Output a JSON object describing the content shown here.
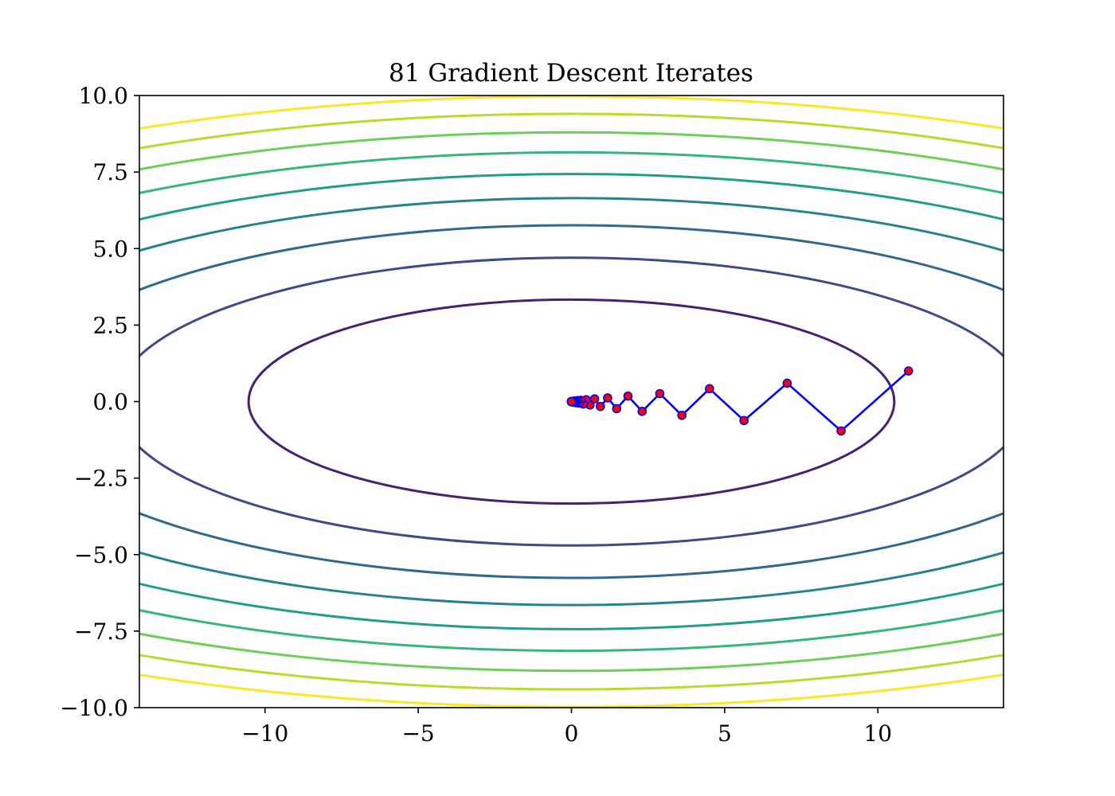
{
  "chart_data": {
    "type": "line",
    "title": "81 Gradient Descent Iterates",
    "xlabel": "",
    "ylabel": "",
    "xlim": [
      -14.1,
      14.1
    ],
    "ylim": [
      -10,
      10
    ],
    "x_ticks": [
      -10,
      -5,
      0,
      5,
      10
    ],
    "x_tick_labels": [
      "−10",
      "−5",
      "0",
      "5",
      "10"
    ],
    "y_ticks": [
      -10,
      -7.5,
      -5,
      -2.5,
      0,
      2.5,
      5,
      7.5,
      10
    ],
    "y_tick_labels": [
      "−10.0",
      "−7.5",
      "−5.0",
      "−2.5",
      "0.0",
      "2.5",
      "5.0",
      "7.5",
      "10.0"
    ],
    "grid": false,
    "contours": {
      "function": "f(x, y) = x^2 / 10 + y^2",
      "levels": [
        11.1,
        22.1,
        33.2,
        44.2,
        55.3,
        66.3,
        77.4,
        88.4,
        99.5
      ],
      "colors": [
        "#482173",
        "#3e4a89",
        "#31688e",
        "#26828e",
        "#1f9e89",
        "#35b779",
        "#6ece58",
        "#b5de2b",
        "#fde725"
      ]
    },
    "series": [
      {
        "color": "#0000ff",
        "marker_face": "#ff0000",
        "x": [
          11,
          8.8,
          7.04,
          5.632,
          4.5056,
          3.6045,
          2.8836,
          2.3069,
          1.8455,
          1.4764,
          1.1811,
          0.9449,
          0.7559,
          0.6047,
          0.4838,
          0.387,
          0.3096,
          0.2477,
          0.1982,
          0.1585,
          0.1268,
          0.1015,
          0.0812,
          0.065,
          0.052,
          0.0416,
          0.0333,
          0.0266,
          0.0213,
          0.017,
          0.0136,
          0.0109,
          0.0087,
          0.007,
          0.0056,
          0.0045,
          0.0036,
          0.0029,
          0.0023,
          0.0018,
          0.0015,
          0.0012,
          0.0009,
          0.0007,
          0.0006,
          0.0005,
          0.0004,
          0.0003,
          0.0002,
          0.0002,
          0.0002,
          0.0001,
          0.0001,
          0.0001,
          0.0001,
          0,
          0,
          0,
          0,
          0,
          0,
          0,
          0,
          0,
          0,
          0,
          0,
          0,
          0,
          0,
          0,
          0,
          0,
          0,
          0,
          0,
          0,
          0,
          0,
          0,
          0
        ],
        "y": [
          1,
          -0.96,
          0.6,
          -0.62,
          0.42,
          -0.45,
          0.26,
          -0.32,
          0.18,
          -0.23,
          0.12,
          -0.16,
          0.09,
          -0.11,
          0.06,
          -0.08,
          0.04,
          -0.05,
          0.03,
          -0.035,
          0.02,
          -0.025,
          0.015,
          -0.018,
          0.01,
          -0.012,
          0.007,
          -0.009,
          0.005,
          -0.006,
          0.003,
          -0.004,
          0.002,
          -0.003,
          0.0015,
          -0.002,
          0.001,
          -0.0013,
          0.0007,
          -0.0009,
          0.0005,
          -0.0006,
          0.0003,
          -0.0004,
          0.0002,
          -0.0003,
          0.0001,
          -0.0002,
          0.0001,
          -0.0001,
          0,
          0,
          0,
          0,
          0,
          0,
          0,
          0,
          0,
          0,
          0,
          0,
          0,
          0,
          0,
          0,
          0,
          0,
          0,
          0,
          0,
          0,
          0,
          0,
          0,
          0,
          0,
          0,
          0,
          0,
          0
        ]
      }
    ]
  }
}
